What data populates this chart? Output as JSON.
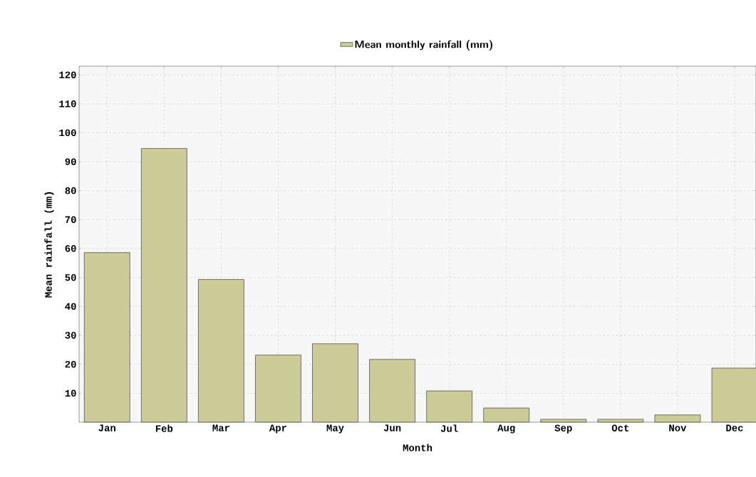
{
  "chart_data": {
    "type": "bar",
    "xlabel": "Month",
    "ylabel": "Mean rainfall (mm)",
    "categories": [
      "Jan",
      "Feb",
      "Mar",
      "Apr",
      "May",
      "Jun",
      "Jul",
      "Aug",
      "Sep",
      "Oct",
      "Nov",
      "Dec"
    ],
    "series": [
      {
        "name": "Mean monthly rainfall (mm)",
        "color": "#cccc99",
        "values": [
          58.6,
          94.6,
          49.3,
          23.2,
          27.1,
          21.7,
          10.8,
          4.9,
          1.0,
          1.0,
          2.5,
          18.7
        ]
      }
    ],
    "ylim": [
      0,
      123
    ],
    "yticks": [
      10,
      20,
      30,
      40,
      50,
      60,
      70,
      80,
      90,
      100,
      110,
      120
    ],
    "grid": true,
    "legend": "top"
  }
}
